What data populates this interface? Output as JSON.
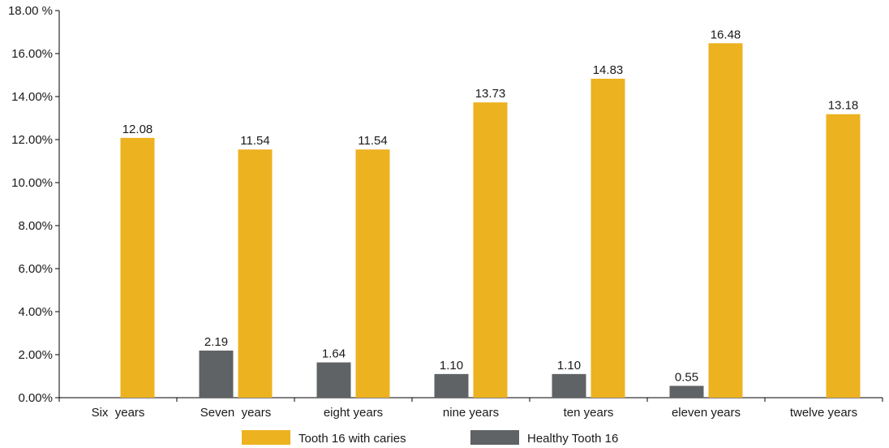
{
  "chart_data": {
    "type": "bar",
    "title": "",
    "xlabel": "",
    "ylabel": "",
    "ylim": [
      0,
      18
    ],
    "y_ticks": [
      0,
      2,
      4,
      6,
      8,
      10,
      12,
      14,
      16,
      18
    ],
    "y_tick_labels": [
      "0.00%",
      "2.00%",
      "4.00%",
      "6.00%",
      "8.00%",
      "10.00%",
      "12.00%",
      "14.00%",
      "16.00%",
      "18.00 %"
    ],
    "grid": false,
    "legend_position": "bottom",
    "categories": [
      "Six  years",
      "Seven  years",
      "eight years",
      "nine years",
      "ten years",
      "eleven years",
      "twelve years"
    ],
    "series": [
      {
        "name": "Healthy Tooth 16",
        "color": "#5f6366",
        "values": [
          null,
          2.19,
          1.64,
          1.1,
          1.1,
          0.55,
          null
        ],
        "labels": [
          "",
          "2.19",
          "1.64",
          "1.10",
          "1.10",
          "0.55",
          ""
        ]
      },
      {
        "name": "Tooth 16 with caries",
        "color": "#edb220",
        "values": [
          12.08,
          11.54,
          11.54,
          13.73,
          14.83,
          16.48,
          13.18
        ],
        "labels": [
          "12.08",
          "11.54",
          "11.54",
          "13.73",
          "14.83",
          "16.48",
          "13.18"
        ]
      }
    ],
    "legend_order": [
      1,
      0
    ]
  }
}
